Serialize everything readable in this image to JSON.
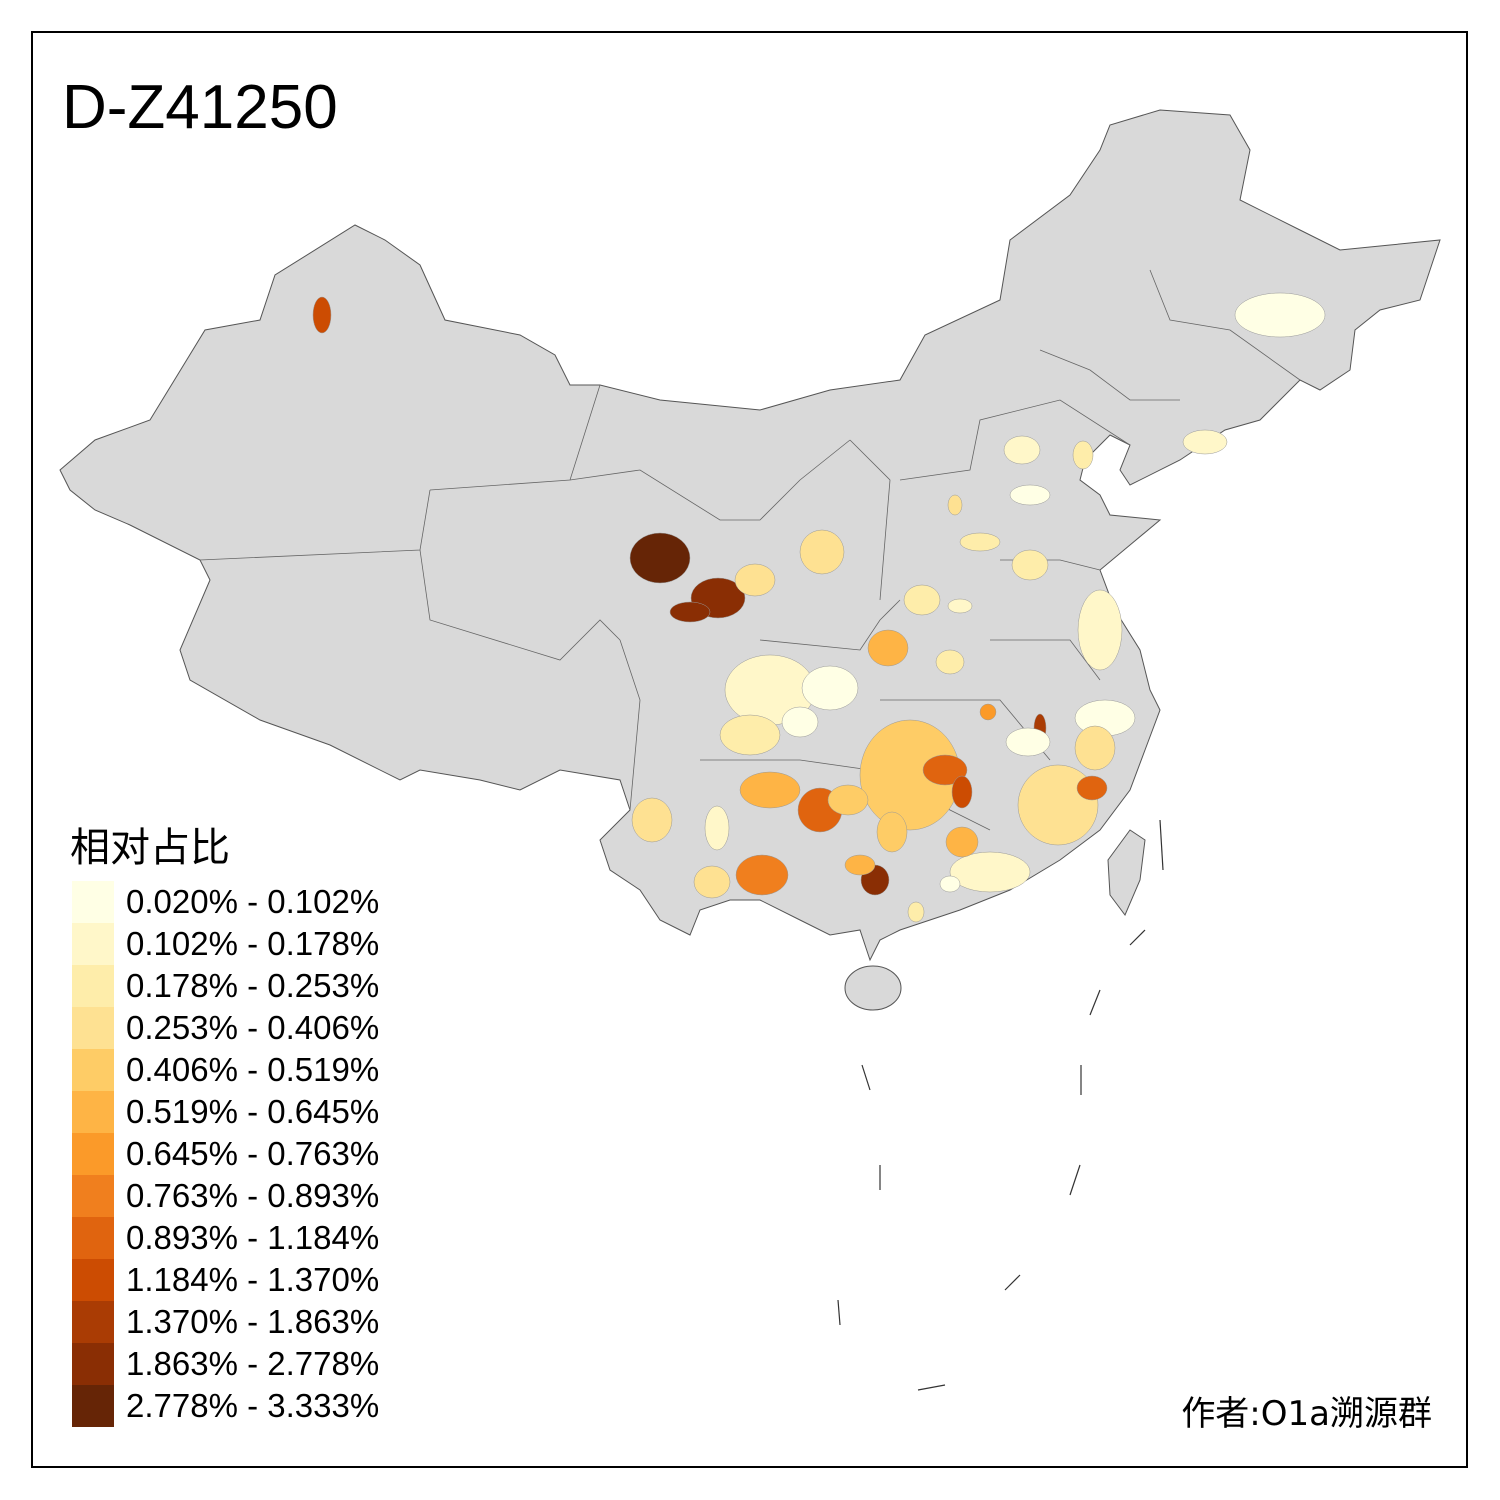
{
  "title": "D-Z41250",
  "legend": {
    "title": "相对占比",
    "classes": [
      {
        "label": "0.020% - 0.102%",
        "color": "#FFFFE5"
      },
      {
        "label": "0.102% - 0.178%",
        "color": "#FFF7C9"
      },
      {
        "label": "0.178% - 0.253%",
        "color": "#FEEDAA"
      },
      {
        "label": "0.253% - 0.406%",
        "color": "#FEE192"
      },
      {
        "label": "0.406% - 0.519%",
        "color": "#FECC66"
      },
      {
        "label": "0.519% - 0.645%",
        "color": "#FEB445"
      },
      {
        "label": "0.645% - 0.763%",
        "color": "#FB9A29"
      },
      {
        "label": "0.763% - 0.893%",
        "color": "#F07F1E"
      },
      {
        "label": "0.893% - 1.184%",
        "color": "#E0640F"
      },
      {
        "label": "1.184% - 1.370%",
        "color": "#CC4C02"
      },
      {
        "label": "1.370% - 1.863%",
        "color": "#AA3C04"
      },
      {
        "label": "1.863% - 2.778%",
        "color": "#8A2E04"
      },
      {
        "label": "2.778% - 3.333%",
        "color": "#662506"
      }
    ]
  },
  "base_color": "#D9D9D9",
  "author": "作者:O1a溯源群"
}
